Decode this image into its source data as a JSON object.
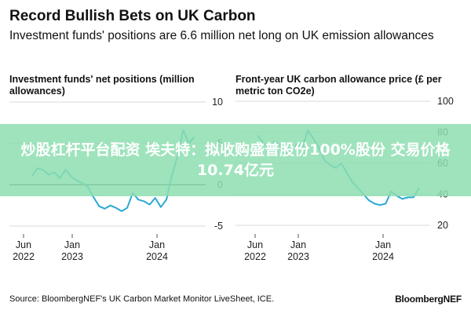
{
  "header": {
    "title": "Record Bullish Bets on UK Carbon",
    "subtitle": "Investment funds' positions are 6.6 million net long on UK emission allowances"
  },
  "colors": {
    "line": "#2aa9d1",
    "grid": "#d9d9d9",
    "zero": "#111111",
    "banner": "#8ddeb0"
  },
  "chart_data": [
    {
      "type": "line",
      "title": "Investment funds' net positions (million allowances)",
      "x": [
        "2022-05",
        "2022-06",
        "2022-07",
        "2022-08",
        "2022-09",
        "2022-10",
        "2022-11",
        "2022-12",
        "2023-01",
        "2023-02",
        "2023-03",
        "2023-04",
        "2023-05",
        "2023-06",
        "2023-07",
        "2023-08",
        "2023-09",
        "2023-10",
        "2023-11",
        "2023-12",
        "2024-01",
        "2024-02",
        "2024-03",
        "2024-04",
        "2024-05",
        "2024-06",
        "2024-07",
        "2024-08",
        "2024-09",
        "2024-10"
      ],
      "series": [
        {
          "values": [
            1.0,
            2.0,
            1.8,
            1.2,
            1.5,
            0.8,
            1.8,
            1.0,
            0.5,
            0.2,
            -0.3,
            -1.5,
            -2.6,
            -2.9,
            -2.5,
            -2.8,
            -3.2,
            -2.8,
            -1.0,
            -1.8,
            -2.0,
            -2.4,
            -1.6,
            -2.7,
            -1.8,
            1.2,
            3.5,
            6.6,
            5.0,
            5.8
          ]
        }
      ],
      "yticks": [
        -5,
        0,
        5,
        10
      ],
      "ylim": [
        -5,
        10
      ],
      "xticks": [
        {
          "label": "Jun",
          "year": "2022"
        },
        {
          "label": "Jan",
          "year": "2023"
        },
        {
          "label": "Jan",
          "year": "2024"
        }
      ],
      "grid": true
    },
    {
      "type": "line",
      "title": "Front-year UK carbon allowance price (£ per metric ton CO2e)",
      "x": [
        "2022-05",
        "2022-06",
        "2022-07",
        "2022-08",
        "2022-09",
        "2022-10",
        "2022-11",
        "2022-12",
        "2023-01",
        "2023-02",
        "2023-03",
        "2023-04",
        "2023-05",
        "2023-06",
        "2023-07",
        "2023-08",
        "2023-09",
        "2023-10",
        "2023-11",
        "2023-12",
        "2024-01",
        "2024-02",
        "2024-03",
        "2024-04",
        "2024-05",
        "2024-06",
        "2024-07",
        "2024-08",
        "2024-09",
        "2024-10"
      ],
      "series": [
        {
          "values": [
            78,
            73,
            70,
            74,
            72,
            66,
            68,
            72,
            70,
            81,
            76,
            70,
            62,
            59,
            57,
            60,
            54,
            48,
            44,
            40,
            36,
            34,
            33,
            34,
            42,
            39,
            37,
            38,
            38,
            44
          ]
        }
      ],
      "yticks": [
        20,
        40,
        60,
        80,
        100
      ],
      "ylim": [
        20,
        100
      ],
      "xticks": [
        {
          "label": "Jun",
          "year": "2022"
        },
        {
          "label": "Jan",
          "year": "2023"
        },
        {
          "label": "Jan",
          "year": "2024"
        }
      ],
      "grid": true
    }
  ],
  "footer": {
    "source": "Source: BloombergNEF's UK Carbon Market Monitor LiveSheet, ICE.",
    "logo": "BloombergNEF"
  },
  "banner": {
    "text": "炒股杠杆平台配资 埃夫特：拟收购盛普股份100%股份 交易价格10.74亿元"
  }
}
